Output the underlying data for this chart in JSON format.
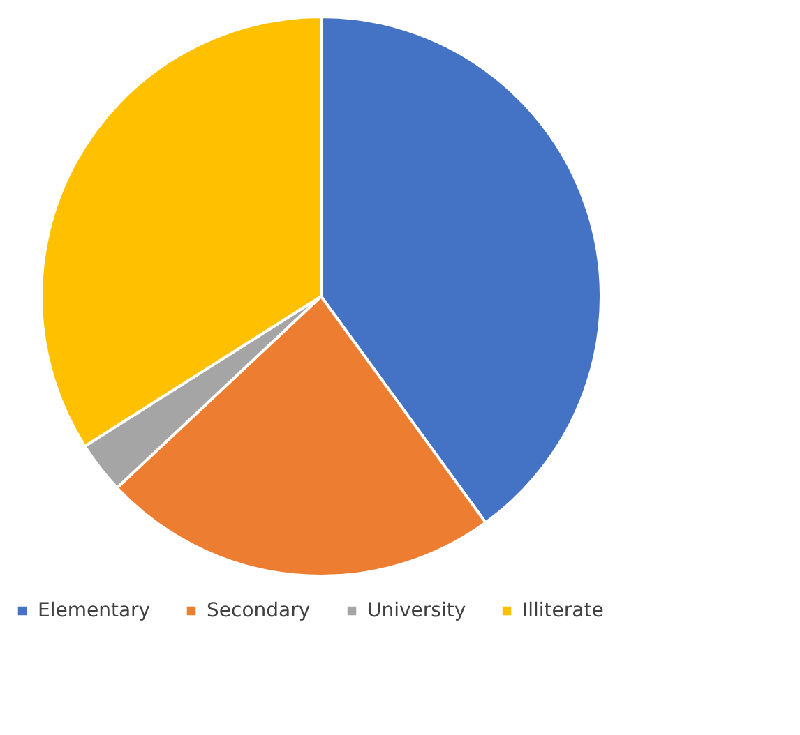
{
  "chart_data": {
    "type": "pie",
    "categories": [
      "Elementary",
      "Secondary",
      "University",
      "Illiterate"
    ],
    "values": [
      40,
      23,
      3,
      34
    ],
    "colors": [
      "#4472c4",
      "#ed7d31",
      "#a5a5a5",
      "#ffc000"
    ],
    "legend": "bottom"
  }
}
